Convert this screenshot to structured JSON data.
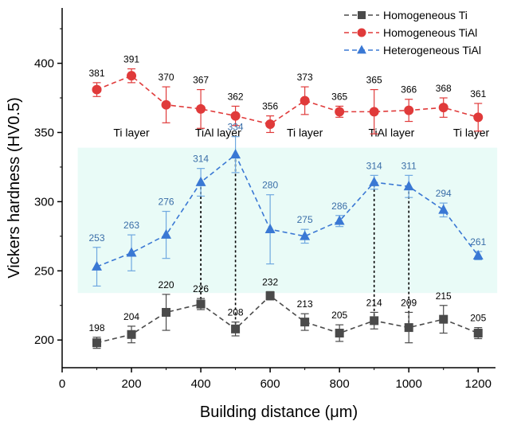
{
  "chart_data": {
    "type": "line",
    "title": "",
    "xlabel": "Building distance (μm)",
    "ylabel": "Vickers hardness (HV0.5)",
    "xlim": [
      0,
      1250
    ],
    "ylim": [
      180,
      440
    ],
    "xticks": [
      0,
      200,
      400,
      600,
      800,
      1000,
      1200
    ],
    "yticks": [
      200,
      250,
      300,
      350,
      400
    ],
    "legend_position": "top-right",
    "series": [
      {
        "name": "Homogeneous Ti",
        "color": "#4a4a4a",
        "marker": "square",
        "x": [
          100,
          200,
          300,
          400,
          500,
          600,
          700,
          800,
          900,
          1000,
          1100,
          1200
        ],
        "values": [
          198,
          204,
          220,
          226,
          208,
          232,
          213,
          205,
          214,
          209,
          215,
          205
        ],
        "labels": [
          "198",
          "204",
          "220",
          "226",
          "208",
          "232",
          "213",
          "205",
          "214",
          "209",
          "215",
          "205"
        ],
        "errors": [
          4,
          6,
          13,
          4,
          5,
          3,
          6,
          6,
          6,
          11,
          10,
          4
        ]
      },
      {
        "name": "Homogeneous TiAl",
        "color": "#e03a3a",
        "marker": "circle",
        "x": [
          100,
          200,
          300,
          400,
          500,
          600,
          700,
          800,
          900,
          1000,
          1100,
          1200
        ],
        "values": [
          381,
          391,
          370,
          367,
          362,
          356,
          373,
          365,
          365,
          366,
          368,
          361
        ],
        "labels": [
          "381",
          "391",
          "370",
          "367",
          "362",
          "356",
          "373",
          "365",
          "365",
          "366",
          "368",
          "361"
        ],
        "errors": [
          5,
          5,
          13,
          14,
          7,
          6,
          10,
          4,
          16,
          8,
          7,
          10
        ]
      },
      {
        "name": "Heterogeneous TiAl",
        "color": "#3a78d4",
        "errorbar_color": "#6fa8e0",
        "marker": "triangle",
        "x": [
          100,
          200,
          300,
          400,
          500,
          600,
          700,
          800,
          900,
          1000,
          1100,
          1200
        ],
        "values": [
          253,
          263,
          276,
          314,
          334,
          280,
          275,
          286,
          314,
          311,
          294,
          261
        ],
        "labels": [
          "253",
          "263",
          "276",
          "314",
          "334",
          "280",
          "275",
          "286",
          "314",
          "311",
          "294",
          "261"
        ],
        "errors": [
          14,
          13,
          17,
          10,
          13,
          25,
          5,
          4,
          5,
          8,
          5,
          3
        ]
      }
    ],
    "band": {
      "x": [
        45,
        1255
      ],
      "y": [
        234,
        339
      ],
      "color": "#e9fbf7"
    },
    "vlines": [
      {
        "x": 400,
        "y": [
          226,
          314
        ]
      },
      {
        "x": 500,
        "y": [
          208,
          334
        ]
      },
      {
        "x": 900,
        "y": [
          214,
          314
        ]
      },
      {
        "x": 1000,
        "y": [
          209,
          311
        ]
      }
    ],
    "band_labels": [
      {
        "text": "Ti layer",
        "x": 200
      },
      {
        "text": "TiAl layer",
        "x": 450
      },
      {
        "text": "Ti layer",
        "x": 700
      },
      {
        "text": "TiAl layer",
        "x": 950
      },
      {
        "text": "Ti layer",
        "x": 1180
      }
    ],
    "band_label_y": 347
  }
}
